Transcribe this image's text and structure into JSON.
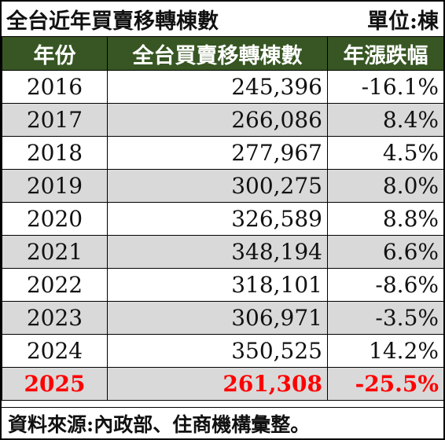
{
  "title": "全台近年買賣移轉棟數",
  "unit": "單位:棟",
  "source": "資料來源:內政部、住商機構彙整。",
  "chart_data": {
    "type": "table",
    "columns": [
      "年份",
      "全台買賣移轉棟數",
      "年漲跌幅"
    ],
    "rows": [
      {
        "year": "2016",
        "count": "245,396",
        "change": "-16.1%"
      },
      {
        "year": "2017",
        "count": "266,086",
        "change": "8.4%"
      },
      {
        "year": "2018",
        "count": "277,967",
        "change": "4.5%"
      },
      {
        "year": "2019",
        "count": "300,275",
        "change": "8.0%"
      },
      {
        "year": "2020",
        "count": "326,589",
        "change": "8.8%"
      },
      {
        "year": "2021",
        "count": "348,194",
        "change": "6.6%"
      },
      {
        "year": "2022",
        "count": "318,101",
        "change": "-8.6%"
      },
      {
        "year": "2023",
        "count": "306,971",
        "change": "-3.5%"
      },
      {
        "year": "2024",
        "count": "350,525",
        "change": "14.2%"
      },
      {
        "year": "2025",
        "count": "261,308",
        "change": "-25.5%"
      }
    ],
    "highlight_color": "#ff0000",
    "header_color": "#375623",
    "stripe_color": "#d9d9d9"
  }
}
